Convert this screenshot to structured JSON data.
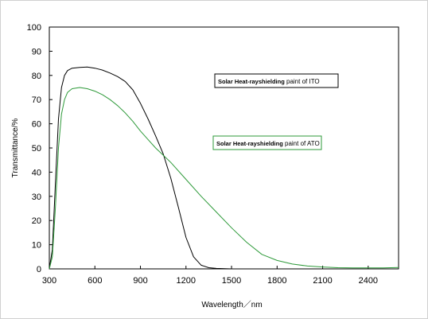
{
  "chart_data": {
    "type": "line",
    "xlabel": "Wavelength／nm",
    "ylabel": "Transmittance/%",
    "xlim": [
      300,
      2600
    ],
    "ylim": [
      0,
      100
    ],
    "x_ticks": [
      300,
      600,
      900,
      1200,
      1500,
      1800,
      2100,
      2400
    ],
    "y_ticks": [
      0,
      10,
      20,
      30,
      40,
      50,
      60,
      70,
      80,
      90,
      100
    ],
    "grid": false,
    "series": [
      {
        "name": "Solar Heat-rayshielding paint of ITO",
        "color": "#000000",
        "x": [
          300,
          320,
          340,
          360,
          380,
          400,
          420,
          450,
          500,
          550,
          600,
          650,
          700,
          750,
          800,
          850,
          900,
          950,
          1000,
          1050,
          1100,
          1150,
          1200,
          1250,
          1300,
          1350,
          1400,
          1500,
          1700,
          2000,
          2300,
          2600
        ],
        "y": [
          0,
          8,
          35,
          62,
          75,
          80,
          82,
          83,
          83.3,
          83.5,
          83,
          82.2,
          81,
          79.5,
          77.5,
          74,
          68.5,
          62,
          55,
          47.5,
          37.5,
          25.5,
          13,
          5,
          1.5,
          0.5,
          0.2,
          0,
          0,
          0,
          0,
          0
        ]
      },
      {
        "name": "Solar Heat-rayshielding paint of ATO",
        "color": "#2e9a3a",
        "x": [
          300,
          320,
          340,
          360,
          380,
          400,
          420,
          450,
          500,
          550,
          600,
          650,
          700,
          750,
          800,
          850,
          900,
          950,
          1000,
          1050,
          1100,
          1200,
          1300,
          1400,
          1500,
          1600,
          1700,
          1800,
          1900,
          2000,
          2100,
          2200,
          2300,
          2400,
          2500,
          2600
        ],
        "y": [
          0,
          5,
          25,
          50,
          64,
          70,
          73,
          74.5,
          75,
          74.5,
          73.5,
          72,
          70,
          67.5,
          64.5,
          61,
          57,
          53.5,
          50,
          47,
          44,
          37,
          30,
          23.5,
          17,
          11,
          6,
          3.5,
          2,
          1.2,
          0.8,
          0.5,
          0.4,
          0.4,
          0.4,
          0.6
        ]
      }
    ],
    "annotations": [
      {
        "text_bold": "Solar Heat-rayshielding",
        "text_rest": " paint of ITO",
        "box_color": "#000000"
      },
      {
        "text_bold": "Solar Heat-rayshielding",
        "text_rest": " paint of ATO",
        "box_color": "#2e9a3a"
      }
    ]
  }
}
